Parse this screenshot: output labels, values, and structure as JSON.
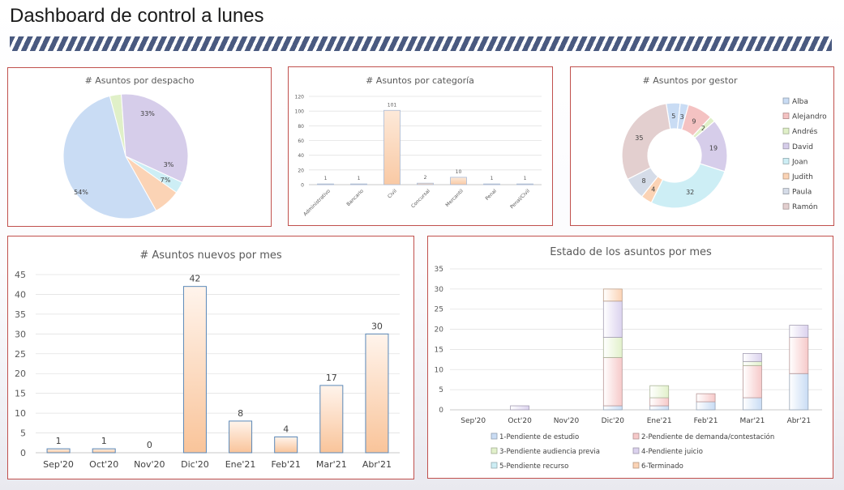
{
  "page": {
    "title": "Dashboard de control a lunes"
  },
  "colors": {
    "panel_border": "#c0504d",
    "stripe": "#4a5a80"
  },
  "chart_data": [
    {
      "id": "despacho",
      "type": "pie",
      "title": "# Asuntos por despacho",
      "slices": [
        {
          "label": "3%",
          "value": 3,
          "color": "#e0f0c8"
        },
        {
          "label": "33%",
          "value": 33,
          "color": "#d6cdea"
        },
        {
          "label": "3%",
          "value": 3,
          "color": "#cdeef5"
        },
        {
          "label": "7%",
          "value": 7,
          "color": "#fbd3b5"
        },
        {
          "label": "54%",
          "value": 54,
          "color": "#c9dcf4"
        }
      ]
    },
    {
      "id": "categoria",
      "type": "bar",
      "title": "# Asuntos por categoría",
      "categories": [
        "Administrativo",
        "Bancario",
        "Civil",
        "Concursal",
        "Mercantil",
        "Penal",
        "Penal/Civil"
      ],
      "values": [
        1,
        1,
        101,
        2,
        10,
        1,
        1
      ],
      "ylim": [
        0,
        120
      ],
      "yticks": [
        0,
        20,
        40,
        60,
        80,
        100,
        120
      ],
      "grid": true
    },
    {
      "id": "gestor",
      "type": "pie",
      "subtype": "doughnut",
      "title": "# Asuntos por gestor",
      "legend_position": "right",
      "slices": [
        {
          "name": "Alba",
          "value": 3,
          "color": "#c9dcf4"
        },
        {
          "name": "Alejandro",
          "value": 9,
          "color": "#f4c2c2"
        },
        {
          "name": "Andrés",
          "value": 2,
          "color": "#e0f0c8"
        },
        {
          "name": "David",
          "value": 19,
          "color": "#d6cdea"
        },
        {
          "name": "Joan",
          "value": 32,
          "color": "#cdeef5"
        },
        {
          "name": "Judith",
          "value": 4,
          "color": "#fbd3b5"
        },
        {
          "name": "Paula",
          "value": 8,
          "color": "#d5dce8"
        },
        {
          "name": "Ramón",
          "value": 35,
          "color": "#e3cfcf"
        },
        {
          "name": "",
          "value": 5,
          "color": "#c9dcf4"
        }
      ]
    },
    {
      "id": "nuevos",
      "type": "bar",
      "title": "# Asuntos  nuevos  por  mes",
      "categories": [
        "Sep'20",
        "Oct'20",
        "Nov'20",
        "Dic'20",
        "Ene'21",
        "Feb'21",
        "Mar'21",
        "Abr'21"
      ],
      "values": [
        1,
        1,
        0,
        42,
        8,
        4,
        17,
        30
      ],
      "ylim": [
        0,
        45
      ],
      "yticks": [
        0,
        5,
        10,
        15,
        20,
        25,
        30,
        35,
        40,
        45
      ],
      "grid": true
    },
    {
      "id": "estado",
      "type": "bar",
      "subtype": "stacked",
      "title": "Estado de los asuntos por mes",
      "categories": [
        "Sep'20",
        "Oct'20",
        "Nov'20",
        "Dic'20",
        "Ene'21",
        "Feb'21",
        "Mar'21",
        "Abr'21"
      ],
      "ylim": [
        0,
        35
      ],
      "yticks": [
        0,
        5,
        10,
        15,
        20,
        25,
        30,
        35
      ],
      "grid": true,
      "legend_position": "bottom",
      "series": [
        {
          "name": "1-Pendiente de estudio",
          "values": [
            0,
            0,
            0,
            1,
            1,
            2,
            3,
            9
          ],
          "color": "#c9dcf4"
        },
        {
          "name": "2-Pendiente de demanda/contestación",
          "values": [
            0,
            0,
            0,
            12,
            2,
            2,
            8,
            9
          ],
          "color": "#f6c9c9"
        },
        {
          "name": "3-Pendiente audiencia previa",
          "values": [
            0,
            0,
            0,
            5,
            3,
            0,
            1,
            0
          ],
          "color": "#e2f1cb"
        },
        {
          "name": "4-Pendiente juicio",
          "values": [
            0,
            1,
            0,
            9,
            0,
            0,
            2,
            3
          ],
          "color": "#dbd2ee"
        },
        {
          "name": "5-Pendiente recurso",
          "values": [
            0,
            0,
            0,
            0,
            0,
            0,
            0,
            0
          ],
          "color": "#cdeef5"
        },
        {
          "name": "6-Terminado",
          "values": [
            0,
            0,
            0,
            3,
            0,
            0,
            0,
            0
          ],
          "color": "#fbd3b5"
        }
      ]
    }
  ]
}
